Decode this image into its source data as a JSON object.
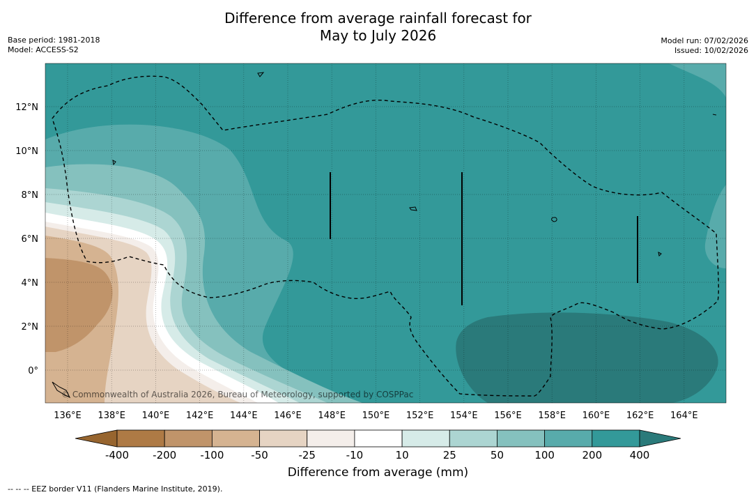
{
  "title": {
    "line1": "Difference from average rainfall forecast for",
    "line2": "May to July 2026"
  },
  "meta_left": {
    "base_period": "Base period: 1981-2018",
    "model": "Model: ACCESS-S2"
  },
  "meta_right": {
    "model_run": "Model run: 07/02/2026",
    "issued": "Issued: 10/02/2026"
  },
  "map": {
    "lon_labels": [
      "136°E",
      "138°E",
      "140°E",
      "142°E",
      "144°E",
      "146°E",
      "148°E",
      "150°E",
      "152°E",
      "154°E",
      "156°E",
      "158°E",
      "160°E",
      "162°E",
      "164°E"
    ],
    "lat_labels": [
      "12°N",
      "10°N",
      "8°N",
      "6°N",
      "4°N",
      "2°N",
      "0°"
    ],
    "copyright": "© Commonwealth of Australia 2026, Bureau of Meteorology, supported by COSPPac"
  },
  "legend": {
    "ticks": [
      "-400",
      "-200",
      "-100",
      "-50",
      "-25",
      "-10",
      "10",
      "25",
      "50",
      "100",
      "200",
      "400"
    ],
    "colors": [
      "#97652f",
      "#ae7a45",
      "#c0946a",
      "#d5b391",
      "#e6d4c3",
      "#f4eeea",
      "#ffffff",
      "#d6ebe8",
      "#acd5d2",
      "#85c1be",
      "#58abab",
      "#339999",
      "#2a7a7a"
    ],
    "title": "Difference from average (mm)"
  },
  "footnote": "-- -- -- EEZ border V11 (Flanders Marine Institute, 2019)."
}
